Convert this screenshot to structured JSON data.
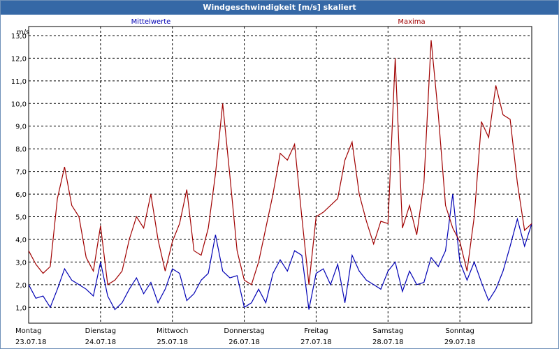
{
  "window": {
    "title": "Windgeschwindigkeit [m/s] skaliert"
  },
  "colors": {
    "mean": "#0000b4",
    "max": "#a00000",
    "titlebar": "#3568a6"
  },
  "chart_data": {
    "type": "line",
    "title": "Windgeschwindigkeit [m/s] skaliert",
    "ylabel": "m/s",
    "xlabel": "",
    "ylim": [
      0.3,
      13.4
    ],
    "yticks": [
      "1,0",
      "2,0",
      "3,0",
      "4,0",
      "5,0",
      "6,0",
      "7,0",
      "8,0",
      "9,0",
      "10,0",
      "11,0",
      "12,0",
      "13,0"
    ],
    "ytick_values": [
      1,
      2,
      3,
      4,
      5,
      6,
      7,
      8,
      9,
      10,
      11,
      12,
      13
    ],
    "grid": true,
    "legend_placement": "top",
    "day_labels": [
      {
        "day": "Montag",
        "date": "23.07.18"
      },
      {
        "day": "Dienstag",
        "date": "24.07.18"
      },
      {
        "day": "Mittwoch",
        "date": "25.07.18"
      },
      {
        "day": "Donnerstag",
        "date": "26.07.18"
      },
      {
        "day": "Freitag",
        "date": "27.07.18"
      },
      {
        "day": "Samstag",
        "date": "28.07.18"
      },
      {
        "day": "Sonntag",
        "date": "29.07.18"
      }
    ],
    "x_unit": "days from Montag 23.07.18 00:00",
    "series": [
      {
        "name": "Mittelwerte",
        "color": "#0000b4",
        "x": [
          0,
          0.1,
          0.2,
          0.3,
          0.4,
          0.5,
          0.6,
          0.7,
          0.8,
          0.9,
          1.0,
          1.1,
          1.2,
          1.3,
          1.4,
          1.5,
          1.6,
          1.7,
          1.8,
          1.9,
          2.0,
          2.1,
          2.2,
          2.3,
          2.4,
          2.5,
          2.6,
          2.7,
          2.8,
          2.9,
          3.0,
          3.1,
          3.2,
          3.3,
          3.4,
          3.5,
          3.6,
          3.7,
          3.8,
          3.9,
          4.0,
          4.1,
          4.2,
          4.3,
          4.4,
          4.5,
          4.6,
          4.7,
          4.8,
          4.9,
          5.0,
          5.1,
          5.2,
          5.3,
          5.4,
          5.5,
          5.6,
          5.7,
          5.8,
          5.9,
          6.0,
          6.1,
          6.2,
          6.3,
          6.4,
          6.5,
          6.6,
          6.7,
          6.8,
          6.9,
          7.0
        ],
        "values": [
          2.0,
          1.4,
          1.5,
          1.0,
          1.8,
          2.7,
          2.2,
          2.0,
          1.8,
          1.5,
          3.0,
          1.5,
          0.9,
          1.2,
          1.8,
          2.3,
          1.6,
          2.1,
          1.2,
          1.8,
          2.7,
          2.5,
          1.3,
          1.6,
          2.2,
          2.5,
          4.2,
          2.6,
          2.3,
          2.4,
          1.0,
          1.2,
          1.8,
          1.2,
          2.5,
          3.1,
          2.6,
          3.5,
          3.3,
          0.9,
          2.5,
          2.7,
          2.0,
          2.9,
          1.2,
          3.3,
          2.6,
          2.2,
          2.0,
          1.8,
          2.6,
          3.0,
          1.7,
          2.6,
          2.0,
          2.1,
          3.2,
          2.8,
          3.5,
          6.0,
          3.0,
          2.2,
          3.0,
          2.1,
          1.3,
          1.8,
          2.6,
          3.7,
          4.9,
          3.7,
          4.7
        ]
      },
      {
        "name": "Maxima",
        "color": "#a00000",
        "x": [
          0,
          0.1,
          0.2,
          0.3,
          0.4,
          0.5,
          0.6,
          0.7,
          0.8,
          0.9,
          1.0,
          1.1,
          1.2,
          1.3,
          1.4,
          1.5,
          1.6,
          1.7,
          1.8,
          1.9,
          2.0,
          2.1,
          2.2,
          2.3,
          2.4,
          2.5,
          2.6,
          2.7,
          2.8,
          2.9,
          3.0,
          3.1,
          3.2,
          3.3,
          3.4,
          3.5,
          3.6,
          3.7,
          3.8,
          3.9,
          4.0,
          4.1,
          4.2,
          4.3,
          4.4,
          4.5,
          4.6,
          4.7,
          4.8,
          4.9,
          5.0,
          5.1,
          5.2,
          5.3,
          5.4,
          5.5,
          5.6,
          5.7,
          5.8,
          5.9,
          6.0,
          6.1,
          6.2,
          6.3,
          6.4,
          6.5,
          6.6,
          6.7,
          6.8,
          6.9,
          7.0
        ],
        "values": [
          3.5,
          2.9,
          2.5,
          2.8,
          5.8,
          7.2,
          5.5,
          5.0,
          3.2,
          2.6,
          4.6,
          2.0,
          2.2,
          2.6,
          4.0,
          5.0,
          4.5,
          6.0,
          4.0,
          2.6,
          3.9,
          4.7,
          6.2,
          3.5,
          3.3,
          4.5,
          6.9,
          10.0,
          6.8,
          3.5,
          2.2,
          2.0,
          3.0,
          4.5,
          6.0,
          7.8,
          7.5,
          8.2,
          5.0,
          2.0,
          5.0,
          5.2,
          5.5,
          5.8,
          7.5,
          8.3,
          6.0,
          4.8,
          3.8,
          4.8,
          4.7,
          12.0,
          4.5,
          5.5,
          4.2,
          6.5,
          12.8,
          9.5,
          5.5,
          4.5,
          3.9,
          2.6,
          5.0,
          9.2,
          8.5,
          10.8,
          9.5,
          9.3,
          6.5,
          4.4,
          4.7
        ]
      }
    ]
  }
}
